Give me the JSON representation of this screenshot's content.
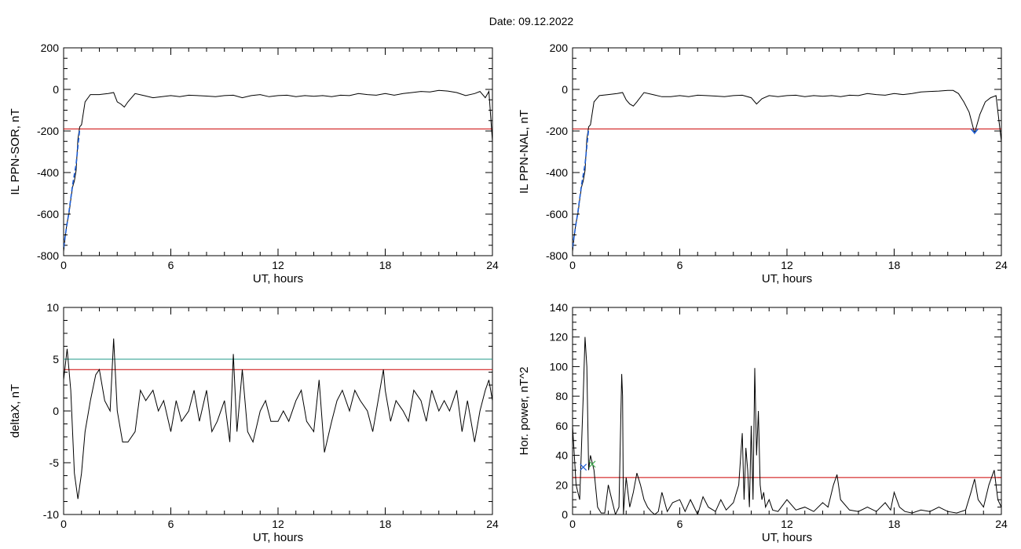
{
  "header": {
    "date_label": "Date:  09.12.2022"
  },
  "colors": {
    "black": "#000000",
    "red": "#cc0000",
    "blue": "#1f5fd6",
    "teal": "#1f9a8a",
    "green": "#3aa84a"
  },
  "chart_data": [
    {
      "type": "line",
      "panel": "top-left",
      "xlabel": "UT, hours",
      "ylabel": "IL PPN-SOR, nT",
      "xlim": [
        0,
        24
      ],
      "ylim": [
        -800,
        200
      ],
      "xticks": [
        0,
        6,
        12,
        18,
        24
      ],
      "yticks": [
        -800,
        -600,
        -400,
        -200,
        0,
        200
      ],
      "threshold_lines": [
        {
          "y": -190,
          "color": "red"
        }
      ],
      "series": [
        {
          "color": "black",
          "x": [
            0,
            0.1,
            0.2,
            0.3,
            0.4,
            0.5,
            0.6,
            0.7,
            0.8,
            0.9,
            1.0,
            1.2,
            1.5,
            2.0,
            2.5,
            2.8,
            3.0,
            3.2,
            3.4,
            3.6,
            4.0,
            4.5,
            5.0,
            5.5,
            6.0,
            6.5,
            7.0,
            7.5,
            8.0,
            8.5,
            9.0,
            9.5,
            10.0,
            10.5,
            11.0,
            11.5,
            12.0,
            12.5,
            13.0,
            13.5,
            14.0,
            14.5,
            15.0,
            15.5,
            16.0,
            16.5,
            17.0,
            17.5,
            18.0,
            18.5,
            19.0,
            19.5,
            20.0,
            20.5,
            21.0,
            21.5,
            22.0,
            22.5,
            23.0,
            23.3,
            23.6,
            23.8,
            24.0
          ],
          "y": [
            -780,
            -700,
            -640,
            -600,
            -530,
            -470,
            -440,
            -390,
            -240,
            -180,
            -170,
            -60,
            -25,
            -25,
            -20,
            -15,
            -60,
            -70,
            -85,
            -60,
            -20,
            -30,
            -40,
            -35,
            -30,
            -35,
            -28,
            -30,
            -32,
            -35,
            -30,
            -28,
            -40,
            -30,
            -25,
            -35,
            -30,
            -28,
            -35,
            -30,
            -33,
            -30,
            -35,
            -28,
            -30,
            -20,
            -25,
            -28,
            -20,
            -28,
            -20,
            -15,
            -10,
            -12,
            -5,
            -8,
            -15,
            -30,
            -20,
            -10,
            -40,
            -10,
            -250
          ]
        },
        {
          "color": "blue",
          "dashed": true,
          "x": [
            0,
            0.15,
            0.3,
            0.5,
            0.7,
            0.9
          ],
          "y": [
            -760,
            -670,
            -590,
            -460,
            -360,
            -190
          ]
        }
      ]
    },
    {
      "type": "line",
      "panel": "top-right",
      "xlabel": "UT, hours",
      "ylabel": "IL PPN-NAL, nT",
      "xlim": [
        0,
        24
      ],
      "ylim": [
        -800,
        200
      ],
      "xticks": [
        0,
        6,
        12,
        18,
        24
      ],
      "yticks": [
        -800,
        -600,
        -400,
        -200,
        0,
        200
      ],
      "threshold_lines": [
        {
          "y": -190,
          "color": "red"
        }
      ],
      "series": [
        {
          "color": "black",
          "x": [
            0,
            0.1,
            0.2,
            0.3,
            0.4,
            0.5,
            0.6,
            0.7,
            0.8,
            0.9,
            1.0,
            1.2,
            1.5,
            2.0,
            2.5,
            2.8,
            3.0,
            3.2,
            3.4,
            3.6,
            4.0,
            4.5,
            5.0,
            5.5,
            6.0,
            6.5,
            7.0,
            7.5,
            8.0,
            8.5,
            9.0,
            9.5,
            10.0,
            10.3,
            10.6,
            11.0,
            11.5,
            12.0,
            12.5,
            13.0,
            13.5,
            14.0,
            14.5,
            15.0,
            15.5,
            16.0,
            16.5,
            17.0,
            17.5,
            18.0,
            18.5,
            19.0,
            19.5,
            20.0,
            20.5,
            21.0,
            21.3,
            21.6,
            21.9,
            22.2,
            22.5,
            22.8,
            23.1,
            23.4,
            23.7,
            24.0
          ],
          "y": [
            -780,
            -700,
            -640,
            -600,
            -530,
            -470,
            -440,
            -390,
            -240,
            -180,
            -170,
            -60,
            -30,
            -25,
            -20,
            -15,
            -50,
            -70,
            -80,
            -60,
            -15,
            -25,
            -35,
            -35,
            -30,
            -35,
            -28,
            -30,
            -32,
            -35,
            -30,
            -28,
            -40,
            -70,
            -45,
            -30,
            -35,
            -30,
            -28,
            -35,
            -30,
            -33,
            -30,
            -35,
            -28,
            -30,
            -20,
            -25,
            -28,
            -20,
            -25,
            -20,
            -12,
            -10,
            -8,
            -5,
            -5,
            -20,
            -60,
            -110,
            -210,
            -120,
            -60,
            -40,
            -30,
            -250
          ]
        },
        {
          "color": "blue",
          "dashed": true,
          "x": [
            0,
            0.15,
            0.3,
            0.5,
            0.7,
            0.9
          ],
          "y": [
            -760,
            -670,
            -590,
            -460,
            -360,
            -190
          ]
        },
        {
          "color": "blue",
          "x": [
            22.3,
            22.5,
            22.7
          ],
          "y": [
            -190,
            -210,
            -190
          ]
        }
      ]
    },
    {
      "type": "line",
      "panel": "bottom-left",
      "xlabel": "UT, hours",
      "ylabel": "deltaX, nT",
      "xlim": [
        0,
        24
      ],
      "ylim": [
        -10,
        10
      ],
      "xticks": [
        0,
        6,
        12,
        18,
        24
      ],
      "yticks": [
        -10,
        -5,
        0,
        5,
        10
      ],
      "threshold_lines": [
        {
          "y": 5,
          "color": "teal"
        },
        {
          "y": 4,
          "color": "red"
        }
      ],
      "series": [
        {
          "color": "black",
          "x": [
            0,
            0.2,
            0.4,
            0.6,
            0.8,
            1.0,
            1.2,
            1.5,
            1.8,
            2.0,
            2.3,
            2.6,
            2.8,
            3.0,
            3.3,
            3.6,
            4.0,
            4.3,
            4.6,
            5.0,
            5.3,
            5.6,
            6.0,
            6.3,
            6.6,
            7.0,
            7.3,
            7.6,
            8.0,
            8.3,
            8.6,
            9.0,
            9.3,
            9.5,
            9.7,
            10.0,
            10.3,
            10.6,
            11.0,
            11.3,
            11.6,
            12.0,
            12.3,
            12.6,
            13.0,
            13.3,
            13.6,
            14.0,
            14.3,
            14.6,
            15.0,
            15.3,
            15.6,
            16.0,
            16.3,
            16.6,
            17.0,
            17.3,
            17.6,
            17.9,
            18.0,
            18.3,
            18.6,
            19.0,
            19.3,
            19.6,
            20.0,
            20.3,
            20.6,
            21.0,
            21.3,
            21.6,
            22.0,
            22.3,
            22.6,
            23.0,
            23.3,
            23.6,
            23.8,
            24.0
          ],
          "y": [
            3,
            6,
            2,
            -6,
            -8.5,
            -6,
            -2,
            1,
            3.5,
            4,
            1,
            0,
            7,
            0,
            -3,
            -3,
            -2,
            2,
            1,
            2,
            0,
            1,
            -2,
            1,
            -1,
            0,
            2,
            -1,
            2,
            -2,
            -1,
            1,
            -3,
            5.5,
            -2,
            4,
            -2,
            -3,
            0,
            1,
            -1,
            -1,
            0,
            -1,
            1,
            2,
            -1,
            -2,
            3,
            -4,
            -1,
            1,
            2,
            0,
            2,
            1,
            0,
            -2,
            1,
            4,
            2,
            -1,
            1,
            0,
            -1,
            2,
            1,
            -1,
            2,
            0,
            1,
            0,
            2,
            -2,
            1,
            -3,
            0,
            2,
            3,
            1
          ]
        }
      ]
    },
    {
      "type": "line",
      "panel": "bottom-right",
      "xlabel": "UT, hours",
      "ylabel": "Hor. power, nT^2",
      "xlim": [
        0,
        24
      ],
      "ylim": [
        0,
        140
      ],
      "xticks": [
        0,
        6,
        12,
        18,
        24
      ],
      "yticks": [
        0,
        20,
        40,
        60,
        80,
        100,
        120,
        140
      ],
      "threshold_lines": [
        {
          "y": 25,
          "color": "red"
        }
      ],
      "markers": [
        {
          "x": 0.6,
          "y": 32,
          "color": "blue",
          "symbol": "x"
        },
        {
          "x": 1.1,
          "y": 34,
          "color": "green",
          "symbol": "x"
        }
      ],
      "series": [
        {
          "color": "black",
          "x": [
            0,
            0.2,
            0.4,
            0.6,
            0.7,
            0.8,
            0.9,
            1.0,
            1.2,
            1.4,
            1.6,
            1.8,
            2.0,
            2.2,
            2.4,
            2.6,
            2.75,
            2.8,
            2.85,
            2.9,
            3.0,
            3.2,
            3.4,
            3.6,
            3.8,
            4.0,
            4.2,
            4.4,
            4.6,
            4.8,
            5.0,
            5.3,
            5.6,
            6.0,
            6.3,
            6.6,
            7.0,
            7.3,
            7.6,
            8.0,
            8.3,
            8.6,
            9.0,
            9.3,
            9.5,
            9.6,
            9.7,
            9.8,
            9.9,
            10.0,
            10.1,
            10.2,
            10.3,
            10.4,
            10.5,
            10.6,
            10.7,
            10.8,
            11.0,
            11.2,
            11.5,
            12.0,
            12.5,
            13.0,
            13.5,
            14.0,
            14.3,
            14.6,
            14.8,
            15.0,
            15.5,
            16.0,
            16.5,
            17.0,
            17.5,
            17.8,
            18.0,
            18.3,
            18.6,
            19.0,
            19.5,
            20.0,
            20.5,
            21.0,
            21.5,
            22.0,
            22.3,
            22.5,
            22.7,
            23.0,
            23.3,
            23.6,
            23.8,
            24.0
          ],
          "y": [
            60,
            20,
            10,
            80,
            120,
            100,
            30,
            40,
            30,
            5,
            1,
            1,
            20,
            10,
            0,
            5,
            95,
            80,
            0,
            10,
            25,
            5,
            15,
            28,
            20,
            10,
            5,
            2,
            0,
            2,
            15,
            2,
            8,
            10,
            2,
            10,
            0,
            12,
            5,
            2,
            10,
            3,
            8,
            20,
            55,
            10,
            45,
            30,
            5,
            60,
            10,
            99,
            40,
            70,
            20,
            10,
            15,
            5,
            10,
            3,
            2,
            10,
            3,
            5,
            2,
            8,
            5,
            20,
            27,
            10,
            3,
            2,
            5,
            2,
            8,
            3,
            15,
            5,
            2,
            1,
            3,
            2,
            5,
            2,
            1,
            3,
            15,
            24,
            10,
            5,
            20,
            30,
            10,
            5
          ]
        }
      ]
    }
  ]
}
